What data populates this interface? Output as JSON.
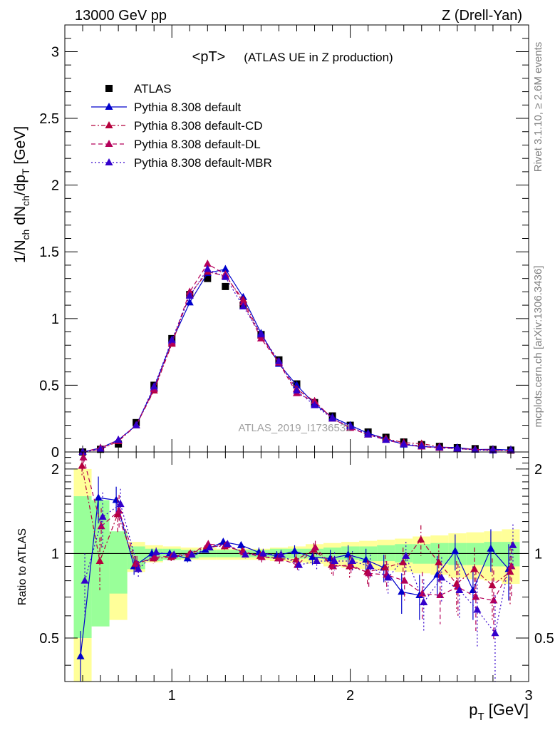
{
  "header": {
    "left": "13000 GeV pp",
    "right": "Z (Drell-Yan)"
  },
  "side_labels": {
    "top": "Rivet 3.1.10, ≥ 2.6M events",
    "bottom": "mcplots.cern.ch [arXiv:1306.3436]"
  },
  "chart_data": [
    {
      "type": "scatter",
      "title": "<pT>",
      "subtitle": "(ATLAS UE in Z production)",
      "watermark": "ATLAS_2019_I1736531",
      "xlabel": "p_T [GeV]",
      "ylabel": "1/N_ch dN_ch/dp_T [GeV]",
      "xlim": [
        0.4,
        3.0
      ],
      "ylim": [
        0,
        3.2
      ],
      "xticks": [
        1,
        2,
        3
      ],
      "yticks": [
        0,
        0.5,
        1,
        1.5,
        2,
        2.5,
        3
      ],
      "ytick_labels": [
        "0",
        "0.5",
        "1",
        "1.5",
        "2",
        "2.5",
        "3"
      ],
      "x": [
        0.5,
        0.6,
        0.7,
        0.8,
        0.9,
        1.0,
        1.1,
        1.2,
        1.3,
        1.4,
        1.5,
        1.6,
        1.7,
        1.8,
        1.9,
        2.0,
        2.1,
        2.2,
        2.3,
        2.4,
        2.5,
        2.6,
        2.7,
        2.8,
        2.9
      ],
      "legend_position": "top-left",
      "series": [
        {
          "name": "ATLAS",
          "color": "#000000",
          "marker": "square",
          "line": "none",
          "values": [
            0.0,
            0.02,
            0.06,
            0.22,
            0.5,
            0.85,
            1.18,
            1.3,
            1.24,
            1.1,
            0.88,
            0.69,
            0.51,
            0.37,
            0.27,
            0.2,
            0.15,
            0.11,
            0.075,
            0.055,
            0.042,
            0.032,
            0.025,
            0.019,
            0.014
          ]
        },
        {
          "name": "Pythia 8.308 default",
          "color": "#0000cc",
          "marker": "triangle",
          "line": "solid",
          "values": [
            0.0,
            0.03,
            0.09,
            0.2,
            0.48,
            0.83,
            1.12,
            1.34,
            1.37,
            1.16,
            0.89,
            0.66,
            0.5,
            0.36,
            0.26,
            0.2,
            0.14,
            0.1,
            0.055,
            0.04,
            0.036,
            0.033,
            0.018,
            0.02,
            0.015
          ]
        },
        {
          "name": "Pythia 8.308 default-CD",
          "color": "#b5003c",
          "marker": "triangle",
          "line": "dashdot",
          "values": [
            0.0,
            0.02,
            0.08,
            0.2,
            0.46,
            0.81,
            1.18,
            1.35,
            1.32,
            1.14,
            0.87,
            0.67,
            0.47,
            0.38,
            0.25,
            0.18,
            0.13,
            0.1,
            0.07,
            0.062,
            0.04,
            0.025,
            0.02,
            0.014,
            0.012
          ]
        },
        {
          "name": "Pythia 8.308 default-DL",
          "color": "#b5005a",
          "marker": "triangle",
          "line": "dashed",
          "values": [
            0.0,
            0.03,
            0.09,
            0.2,
            0.47,
            0.82,
            1.2,
            1.41,
            1.33,
            1.12,
            0.85,
            0.67,
            0.44,
            0.38,
            0.25,
            0.18,
            0.13,
            0.09,
            0.06,
            0.04,
            0.03,
            0.025,
            0.017,
            0.013,
            0.012
          ]
        },
        {
          "name": "Pythia 8.308 default-MBR",
          "color": "#3300cc",
          "marker": "triangle",
          "line": "dotted",
          "values": [
            0.0,
            0.02,
            0.09,
            0.2,
            0.49,
            0.84,
            1.17,
            1.37,
            1.31,
            1.09,
            0.88,
            0.68,
            0.46,
            0.35,
            0.25,
            0.19,
            0.13,
            0.09,
            0.06,
            0.045,
            0.034,
            0.025,
            0.016,
            0.01,
            0.015
          ]
        }
      ]
    },
    {
      "type": "line",
      "ylabel": "Ratio to ATLAS",
      "xlim": [
        0.4,
        3.0
      ],
      "ylim": [
        0.35,
        2.3
      ],
      "xticks": [
        1,
        2,
        3
      ],
      "yticks": [
        0.5,
        1,
        2
      ],
      "ytick_labels": [
        "0.5",
        "1",
        "2"
      ],
      "reference_line": 1,
      "band_inner_color": "#99ff99",
      "band_outer_color": "#ffff99",
      "band_inner": [
        [
          0.5,
          1.6
        ],
        [
          0.55,
          1.55
        ],
        [
          0.72,
          1.2
        ],
        [
          0.88,
          1.06
        ],
        [
          0.94,
          1.04
        ],
        [
          0.95,
          1.04
        ],
        [
          0.96,
          1.03
        ],
        [
          0.97,
          1.03
        ],
        [
          0.97,
          1.03
        ],
        [
          0.97,
          1.03
        ],
        [
          0.97,
          1.03
        ],
        [
          0.96,
          1.04
        ],
        [
          0.96,
          1.04
        ],
        [
          0.96,
          1.04
        ],
        [
          0.95,
          1.05
        ],
        [
          0.95,
          1.06
        ],
        [
          0.94,
          1.06
        ],
        [
          0.94,
          1.07
        ],
        [
          0.93,
          1.08
        ],
        [
          0.92,
          1.08
        ],
        [
          0.92,
          1.09
        ],
        [
          0.91,
          1.09
        ],
        [
          0.91,
          1.09
        ],
        [
          0.9,
          1.1
        ],
        [
          0.9,
          1.1
        ]
      ],
      "band_outer": [
        [
          0.3,
          2.0
        ],
        [
          0.68,
          1.35
        ],
        [
          0.58,
          1.18
        ],
        [
          0.86,
          1.1
        ],
        [
          0.93,
          1.07
        ],
        [
          0.95,
          1.06
        ],
        [
          0.95,
          1.05
        ],
        [
          0.95,
          1.05
        ],
        [
          0.95,
          1.04
        ],
        [
          0.95,
          1.04
        ],
        [
          0.95,
          1.04
        ],
        [
          0.94,
          1.05
        ],
        [
          0.93,
          1.06
        ],
        [
          0.92,
          1.08
        ],
        [
          0.9,
          1.09
        ],
        [
          0.89,
          1.1
        ],
        [
          0.88,
          1.11
        ],
        [
          0.87,
          1.12
        ],
        [
          0.86,
          1.13
        ],
        [
          0.85,
          1.15
        ],
        [
          0.84,
          1.16
        ],
        [
          0.82,
          1.18
        ],
        [
          0.81,
          1.19
        ],
        [
          0.8,
          1.2
        ],
        [
          0.78,
          1.22
        ]
      ],
      "series": [
        {
          "name": "Pythia 8.308 default",
          "color": "#0000cc",
          "line": "solid",
          "values": [
            0.43,
            1.58,
            1.55,
            0.9,
            1.0,
            1.0,
            0.96,
            1.03,
            1.1,
            1.07,
            1.01,
            0.98,
            1.02,
            0.97,
            0.96,
            0.99,
            0.95,
            0.89,
            0.73,
            0.71,
            0.84,
            1.02,
            0.74,
            1.04,
            0.88
          ],
          "errors": [
            0.1,
            0.3,
            0.18,
            0.06,
            0.04,
            0.03,
            0.03,
            0.02,
            0.03,
            0.03,
            0.04,
            0.04,
            0.05,
            0.06,
            0.07,
            0.08,
            0.09,
            0.1,
            0.12,
            0.13,
            0.14,
            0.15,
            0.16,
            0.18,
            0.2
          ]
        },
        {
          "name": "Pythia 8.308 default-CD",
          "color": "#b5003c",
          "line": "dashdot",
          "values": [
            2.05,
            0.94,
            1.38,
            0.92,
            0.96,
            0.97,
            0.99,
            1.06,
            1.06,
            1.02,
            0.98,
            0.96,
            0.95,
            1.03,
            0.91,
            0.9,
            0.86,
            0.89,
            0.93,
            1.12,
            0.93,
            0.78,
            0.88,
            0.77,
            0.86
          ],
          "errors": [
            0.15,
            0.2,
            0.2,
            0.06,
            0.04,
            0.03,
            0.03,
            0.03,
            0.03,
            0.03,
            0.04,
            0.04,
            0.05,
            0.06,
            0.07,
            0.08,
            0.09,
            0.1,
            0.12,
            0.14,
            0.15,
            0.16,
            0.17,
            0.19,
            0.2
          ]
        },
        {
          "name": "Pythia 8.308 default-DL",
          "color": "#b5005a",
          "line": "dashed",
          "values": [
            2.2,
            1.25,
            1.42,
            0.92,
            0.97,
            0.98,
            1.0,
            1.08,
            1.07,
            1.01,
            0.97,
            0.96,
            0.91,
            1.05,
            0.9,
            0.91,
            0.85,
            0.84,
            0.8,
            0.72,
            0.71,
            0.76,
            0.7,
            0.68,
            0.9
          ],
          "errors": [
            0.15,
            0.2,
            0.2,
            0.06,
            0.04,
            0.03,
            0.03,
            0.03,
            0.03,
            0.03,
            0.04,
            0.04,
            0.05,
            0.06,
            0.07,
            0.08,
            0.09,
            0.1,
            0.12,
            0.14,
            0.15,
            0.16,
            0.17,
            0.19,
            0.2
          ]
        },
        {
          "name": "Pythia 8.308 default-MBR",
          "color": "#3300cc",
          "line": "dotted",
          "values": [
            0.8,
            1.35,
            1.5,
            0.88,
            1.01,
            0.99,
            0.99,
            1.05,
            1.08,
            0.99,
            1.0,
            0.99,
            0.91,
            0.94,
            0.94,
            0.94,
            0.9,
            0.82,
            0.98,
            0.67,
            0.82,
            0.74,
            0.63,
            0.52,
            1.07
          ],
          "errors": [
            0.2,
            0.3,
            0.2,
            0.06,
            0.04,
            0.03,
            0.03,
            0.03,
            0.03,
            0.03,
            0.04,
            0.04,
            0.05,
            0.06,
            0.07,
            0.08,
            0.09,
            0.1,
            0.12,
            0.14,
            0.15,
            0.16,
            0.17,
            0.19,
            0.2
          ]
        }
      ]
    }
  ]
}
